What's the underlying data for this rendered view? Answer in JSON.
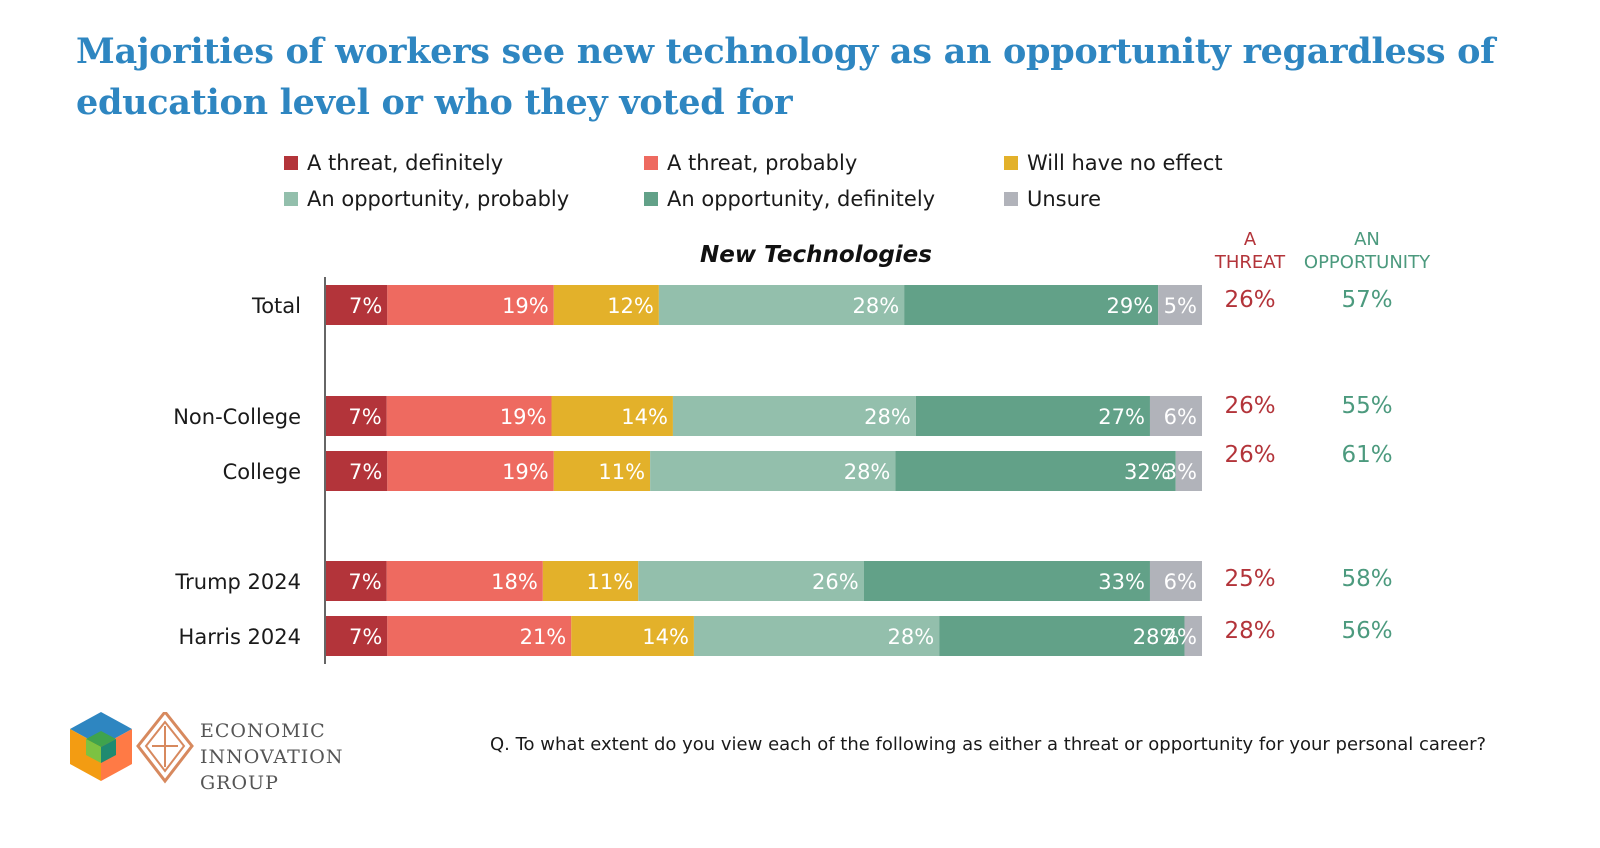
{
  "title": "Majorities of workers see new technology as an opportunity regardless of education level or who they voted for",
  "legend": [
    {
      "label": "A threat, definitely",
      "color": "#b3343a"
    },
    {
      "label": "A threat, probably",
      "color": "#ee6a60"
    },
    {
      "label": "Will have no effect",
      "color": "#e3b12a"
    },
    {
      "label": "An opportunity, probably",
      "color": "#93bfac"
    },
    {
      "label": "An opportunity, definitely",
      "color": "#62a188"
    },
    {
      "label": "Unsure",
      "color": "#b1b3ba"
    }
  ],
  "colors": {
    "threat_text": "#b3343a",
    "opportunity_text": "#4c9a7e"
  },
  "chart_data": {
    "type": "bar",
    "orientation": "horizontal",
    "stacked": true,
    "title": "New Technologies",
    "categories": [
      "Total",
      "Non-College",
      "College",
      "Trump 2024",
      "Harris 2024"
    ],
    "groups": [
      [
        "Total"
      ],
      [
        "Non-College",
        "College"
      ],
      [
        "Trump 2024",
        "Harris 2024"
      ]
    ],
    "series": [
      {
        "name": "A threat, definitely",
        "values": [
          7,
          7,
          7,
          7,
          7
        ]
      },
      {
        "name": "A threat, probably",
        "values": [
          19,
          19,
          19,
          18,
          21
        ]
      },
      {
        "name": "Will have no effect",
        "values": [
          12,
          14,
          11,
          11,
          14
        ]
      },
      {
        "name": "An opportunity, probably",
        "values": [
          28,
          28,
          28,
          26,
          28
        ]
      },
      {
        "name": "An opportunity, definitely",
        "values": [
          29,
          27,
          32,
          33,
          28
        ]
      },
      {
        "name": "Unsure",
        "values": [
          5,
          6,
          3,
          6,
          2
        ]
      }
    ],
    "value_suffix": "%",
    "summary_columns": [
      {
        "header": [
          "A",
          "THREAT"
        ],
        "values": [
          "26%",
          "26%",
          "26%",
          "25%",
          "28%"
        ]
      },
      {
        "header": [
          "AN",
          "OPPORTUNITY"
        ],
        "values": [
          "57%",
          "55%",
          "61%",
          "58%",
          "56%"
        ]
      }
    ]
  },
  "logo": {
    "lines": [
      "ECONOMIC",
      "INNOVATION",
      "GROUP"
    ]
  },
  "question": "Q. To what extent do you view each of the following as either a threat or opportunity for your personal career?"
}
